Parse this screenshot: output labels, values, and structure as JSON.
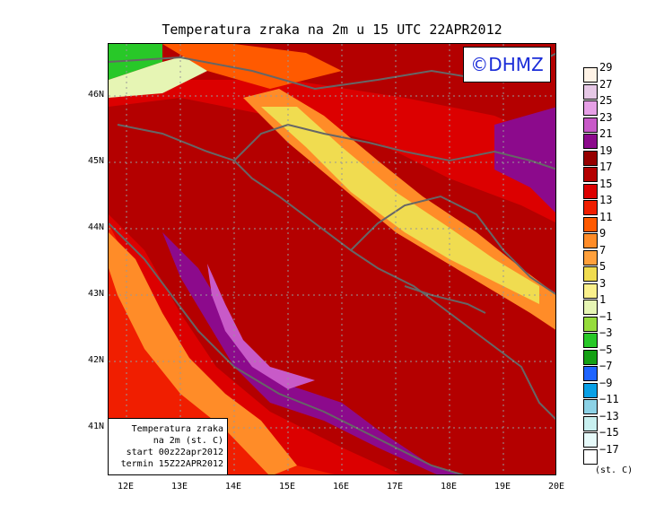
{
  "title": "Temperatura zraka na 2m u 15 UTC 22APR2012",
  "logo_text": "©DHMZ",
  "info_box": {
    "line1": "Temperatura zraka",
    "line2": "na 2m (st. C)",
    "line3": "start 00z22apr2012",
    "line4": "termin 15Z22APR2012"
  },
  "lat_labels": [
    "46N",
    "45N",
    "44N",
    "43N",
    "42N",
    "41N"
  ],
  "lon_labels": [
    "12E",
    "13E",
    "14E",
    "15E",
    "16E",
    "17E",
    "18E",
    "19E",
    "20E"
  ],
  "legend": {
    "unit": "(st. C)",
    "labels": [
      "29",
      "27",
      "25",
      "23",
      "21",
      "19",
      "17",
      "15",
      "13",
      "11",
      "9",
      "7",
      "5",
      "3",
      "1",
      "−1",
      "−3",
      "−5",
      "−7",
      "−9",
      "−11",
      "−13",
      "−15",
      "−17"
    ],
    "colors": [
      "#fff3e6",
      "#e6c8e6",
      "#e6a0e6",
      "#c85ac8",
      "#8c0a8c",
      "#960000",
      "#b40000",
      "#dc0000",
      "#f01e00",
      "#ff5a00",
      "#ff8c28",
      "#ffa03c",
      "#f0dc50",
      "#faf08c",
      "#e6f5b4",
      "#96dc3c",
      "#28c828",
      "#14a014",
      "#1e64ff",
      "#0aa0e6",
      "#8cd2e6",
      "#c8f0f0",
      "#e6fafa",
      "#ffffff"
    ]
  }
}
